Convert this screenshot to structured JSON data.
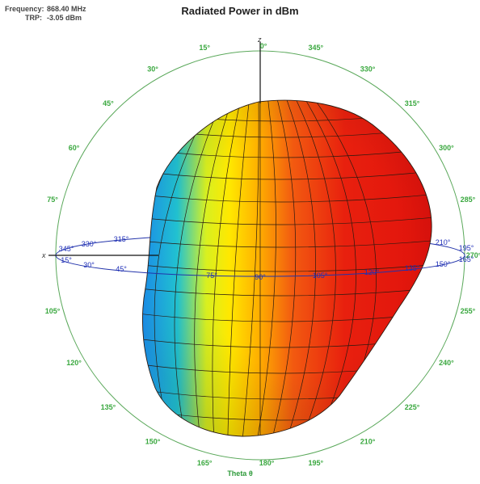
{
  "info": {
    "frequency_label": "Frequency:",
    "frequency_value": "868.40 MHz",
    "trp_label": "TRP:",
    "trp_value": "-3.05 dBm"
  },
  "chart_data": {
    "type": "3d-radiation-pattern",
    "title": "Radiated Power in dBm",
    "theta_axis_label": "Theta θ",
    "axis_labels": {
      "z": "z",
      "x": "x"
    },
    "theta_ticks_left": [
      "15°",
      "30°",
      "45°",
      "60°",
      "75°",
      "105°",
      "120°",
      "135°",
      "150°",
      "165°"
    ],
    "theta_ticks_right": [
      "345°",
      "330°",
      "315°",
      "300°",
      "285°",
      "255°",
      "240°",
      "225°",
      "210°",
      "195°"
    ],
    "theta_top": "0°",
    "theta_bottom": "180°",
    "theta_right_mid": "270°",
    "phi_ticks": [
      "345°",
      "330°",
      "315°",
      "15°",
      "30°",
      "45°",
      "75°",
      "90°",
      "105°",
      "120°",
      "135°",
      "150°",
      "165°",
      "195°",
      "210°"
    ],
    "colors": {
      "circle": "#5aa85a",
      "equator": "#2233aa",
      "low": "#1e90ff",
      "mid": "#ffee00",
      "high": "#e8170e"
    }
  }
}
